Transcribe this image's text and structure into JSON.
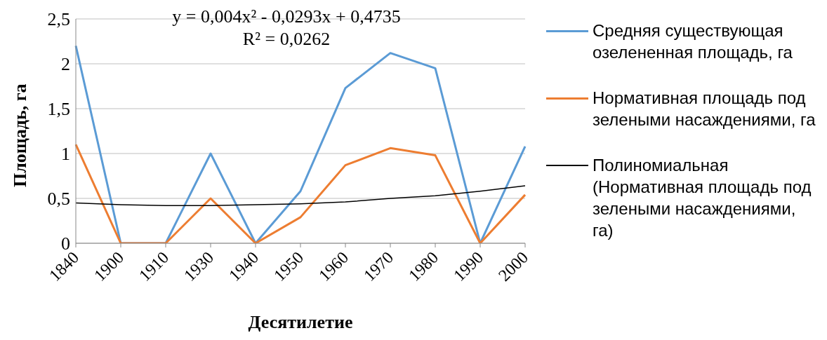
{
  "chart_data": {
    "type": "line",
    "categories": [
      "1840",
      "1900",
      "1910",
      "1930",
      "1940",
      "1950",
      "1960",
      "1970",
      "1980",
      "1990",
      "2000"
    ],
    "series": [
      {
        "name": "Средняя существующая озелененная площадь, га",
        "color": "#5b9bd5",
        "values": [
          2.2,
          0,
          0,
          1.0,
          0,
          0.58,
          1.73,
          2.12,
          1.95,
          0,
          1.08
        ]
      },
      {
        "name": "Нормативная площадь под зелеными насаждениями, га",
        "color": "#ed7d31",
        "values": [
          1.1,
          0,
          0,
          0.5,
          0,
          0.29,
          0.87,
          1.06,
          0.98,
          0,
          0.54
        ]
      },
      {
        "name": "Полиномиальная (Нормативная площадь под зелеными насаждениями, га)",
        "color": "#000000",
        "values": [
          0.45,
          0.43,
          0.42,
          0.42,
          0.43,
          0.44,
          0.46,
          0.5,
          0.53,
          0.58,
          0.64
        ]
      }
    ],
    "xlabel": "Десятилетие",
    "ylabel": "Площадь, га",
    "ylim": [
      0,
      2.5
    ],
    "yticks": [
      0,
      {
        "value": 0.5,
        "label": "0,5"
      },
      1,
      {
        "value": 1.5,
        "label": "1,5"
      },
      2,
      {
        "value": 2.5,
        "label": "2,5"
      }
    ],
    "annotations": [
      "y = 0,004x² - 0,0293x + 0,4735",
      "R² = 0,0262"
    ],
    "grid": "y",
    "legend": "right",
    "marker": "none",
    "line_style": "solid"
  }
}
